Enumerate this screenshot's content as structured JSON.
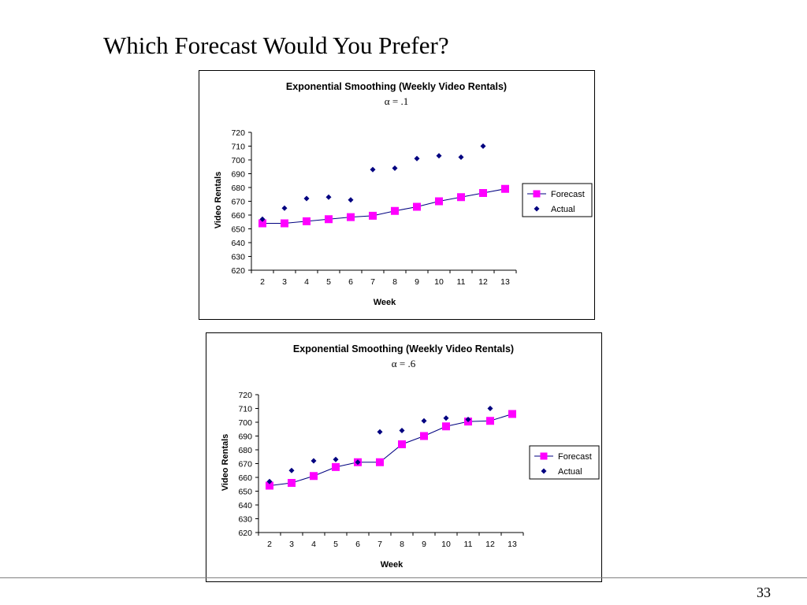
{
  "slide": {
    "title": "Which Forecast Would You Prefer?",
    "page_number": "33"
  },
  "colors": {
    "forecast": "#ff00ff",
    "actual": "#000080",
    "frame": "#000000"
  },
  "chart_data": [
    {
      "type": "line",
      "title": "Exponential Smoothing (Weekly Video Rentals)",
      "subtitle": "α = .1",
      "xlabel": "Week",
      "ylabel": "Video Rentals",
      "x": [
        2,
        3,
        4,
        5,
        6,
        7,
        8,
        9,
        10,
        11,
        12,
        13
      ],
      "ylim": [
        620,
        720
      ],
      "yticks": [
        620,
        630,
        640,
        650,
        660,
        670,
        680,
        690,
        700,
        710,
        720
      ],
      "grid": false,
      "legend_position": "right",
      "series": [
        {
          "name": "Forecast",
          "marker": "square",
          "line": true,
          "values": [
            654,
            654,
            655.5,
            657,
            658.5,
            659.5,
            663,
            666,
            670,
            673,
            676,
            679
          ]
        },
        {
          "name": "Actual",
          "marker": "diamond",
          "line": false,
          "values": [
            657,
            665,
            672,
            673,
            671,
            693,
            694,
            701,
            703,
            702,
            710,
            null
          ]
        }
      ]
    },
    {
      "type": "line",
      "title": "Exponential Smoothing (Weekly Video Rentals)",
      "subtitle": "α = .6",
      "xlabel": "Week",
      "ylabel": "Video Rentals",
      "x": [
        2,
        3,
        4,
        5,
        6,
        7,
        8,
        9,
        10,
        11,
        12,
        13
      ],
      "ylim": [
        620,
        720
      ],
      "yticks": [
        620,
        630,
        640,
        650,
        660,
        670,
        680,
        690,
        700,
        710,
        720
      ],
      "grid": false,
      "legend_position": "right",
      "series": [
        {
          "name": "Forecast",
          "marker": "square",
          "line": true,
          "values": [
            654,
            656,
            661,
            667.5,
            671,
            671,
            684,
            690,
            697,
            700.5,
            701,
            706
          ]
        },
        {
          "name": "Actual",
          "marker": "diamond",
          "line": false,
          "values": [
            657,
            665,
            672,
            673,
            671,
            693,
            694,
            701,
            703,
            702,
            710,
            null
          ]
        }
      ]
    }
  ]
}
